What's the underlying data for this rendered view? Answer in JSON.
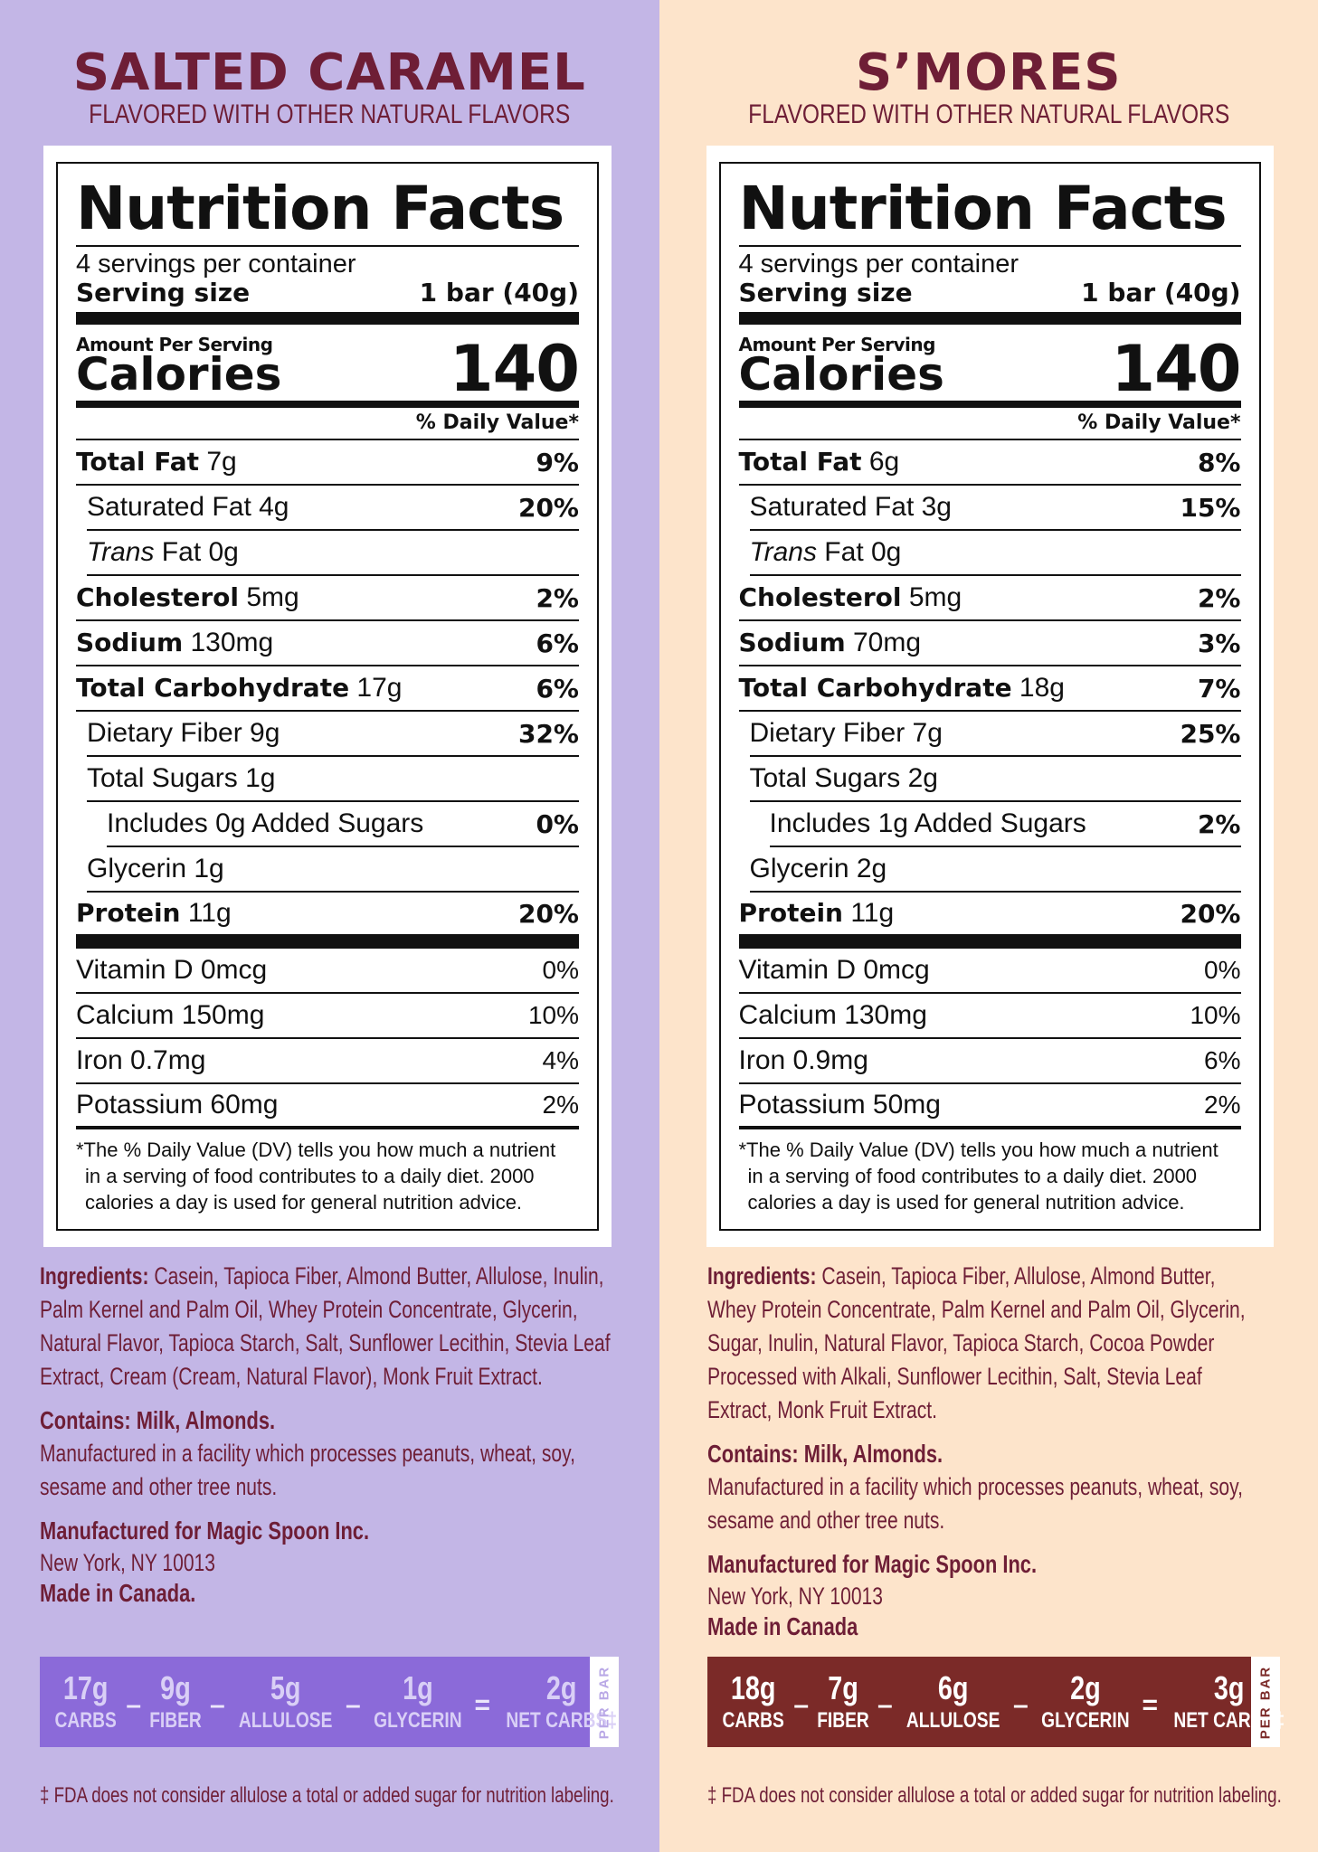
{
  "products": [
    {
      "flavor": "SALTED CARAMEL",
      "subtitle": "FLAVORED WITH OTHER NATURAL FLAVORS",
      "nutrition": {
        "title": "Nutrition Facts",
        "servings_per_container": "4 servings per container",
        "serving_size_label": "Serving size",
        "serving_size_value": "1 bar (40g)",
        "amount_per_serving": "Amount Per Serving",
        "calories_label": "Calories",
        "calories_value": "140",
        "daily_value_header": "% Daily Value*",
        "rows": {
          "total_fat": {
            "name": "Total Fat",
            "amount": " 7g",
            "dv": "9%"
          },
          "saturated_fat": {
            "name": "Saturated Fat 4g",
            "dv": "20%"
          },
          "trans_fat": {
            "name_italic": "Trans",
            "name_rest": " Fat 0g"
          },
          "cholesterol": {
            "name": "Cholesterol",
            "amount": " 5mg",
            "dv": "2%"
          },
          "sodium": {
            "name": "Sodium",
            "amount": " 130mg",
            "dv": "6%"
          },
          "total_carbohydrate": {
            "name": "Total Carbohydrate",
            "amount": " 17g",
            "dv": "6%"
          },
          "dietary_fiber": {
            "name": "Dietary Fiber 9g",
            "dv": "32%"
          },
          "total_sugars": {
            "name": "Total Sugars 1g"
          },
          "added_sugars": {
            "name": "Includes 0g Added Sugars",
            "dv": "0%"
          },
          "glycerin": {
            "name": "Glycerin 1g"
          },
          "protein": {
            "name": "Protein",
            "amount": " 11g",
            "dv": "20%"
          }
        },
        "vitamins": {
          "vitamin_d": {
            "name": "Vitamin D 0mcg",
            "dv": "0%"
          },
          "calcium": {
            "name": "Calcium 150mg",
            "dv": "10%"
          },
          "iron": {
            "name": "Iron 0.7mg",
            "dv": "4%"
          },
          "potassium": {
            "name": "Potassium 60mg",
            "dv": "2%"
          }
        },
        "footnote": {
          "line1": "*The % Daily Value (DV) tells you how much a nutrient",
          "line2": "in a serving of food contributes to a daily diet. 2000",
          "line3": "calories a day is used for general nutrition advice."
        }
      },
      "ingredients_label": "Ingredients:",
      "ingredients_text": " Casein, Tapioca Fiber, Almond Butter, Allulose, Inulin, Palm Kernel and Palm Oil, Whey Protein Concentrate, Glycerin, Natural Flavor, Tapioca Starch, Salt, Sunflower Lecithin, Stevia Leaf Extract, Cream (Cream, Natural Flavor), Monk Fruit Extract.",
      "contains": "Contains: Milk, Almonds.",
      "facility": "Manufactured in a facility which processes peanuts, wheat, soy, sesame and other tree nuts.",
      "manufactured_for": "Manufactured for Magic Spoon Inc.",
      "address": "New York, NY 10013",
      "made_in": "Made in Canada.",
      "carbs_bar": {
        "carbs_value": "17g",
        "carbs_label": "CARBS",
        "fiber_value": "9g",
        "fiber_label": "FIBER",
        "allulose_value": "5g",
        "allulose_label": "ALLULOSE",
        "glycerin_value": "1g",
        "glycerin_label": "GLYCERIN",
        "net_value": "2g",
        "net_label": "NET CARBS‡",
        "minus": "–",
        "equals": "=",
        "per_bar": "PER BAR"
      },
      "fda_note": "‡ FDA does not consider allulose a total or added sugar for nutrition labeling."
    },
    {
      "flavor": "S’MORES",
      "subtitle": "FLAVORED WITH OTHER NATURAL FLAVORS",
      "nutrition": {
        "title": "Nutrition Facts",
        "servings_per_container": "4 servings per container",
        "serving_size_label": "Serving size",
        "serving_size_value": "1 bar (40g)",
        "amount_per_serving": "Amount Per Serving",
        "calories_label": "Calories",
        "calories_value": "140",
        "daily_value_header": "% Daily Value*",
        "rows": {
          "total_fat": {
            "name": "Total Fat",
            "amount": " 6g",
            "dv": "8%"
          },
          "saturated_fat": {
            "name": "Saturated Fat 3g",
            "dv": "15%"
          },
          "trans_fat": {
            "name_italic": "Trans",
            "name_rest": " Fat 0g"
          },
          "cholesterol": {
            "name": "Cholesterol",
            "amount": " 5mg",
            "dv": "2%"
          },
          "sodium": {
            "name": "Sodium",
            "amount": " 70mg",
            "dv": "3%"
          },
          "total_carbohydrate": {
            "name": "Total Carbohydrate",
            "amount": " 18g",
            "dv": "7%"
          },
          "dietary_fiber": {
            "name": "Dietary Fiber 7g",
            "dv": "25%"
          },
          "total_sugars": {
            "name": "Total Sugars 2g"
          },
          "added_sugars": {
            "name": "Includes 1g Added Sugars",
            "dv": "2%"
          },
          "glycerin": {
            "name": "Glycerin 2g"
          },
          "protein": {
            "name": "Protein",
            "amount": " 11g",
            "dv": "20%"
          }
        },
        "vitamins": {
          "vitamin_d": {
            "name": "Vitamin D 0mcg",
            "dv": "0%"
          },
          "calcium": {
            "name": "Calcium 130mg",
            "dv": "10%"
          },
          "iron": {
            "name": "Iron 0.9mg",
            "dv": "6%"
          },
          "potassium": {
            "name": "Potassium 50mg",
            "dv": "2%"
          }
        },
        "footnote": {
          "line1": "*The % Daily Value (DV) tells you how much a nutrient",
          "line2": "in a serving of food contributes to a daily diet. 2000",
          "line3": "calories a day is used for general nutrition advice."
        }
      },
      "ingredients_label": "Ingredients:",
      "ingredients_text": " Casein, Tapioca Fiber, Allulose, Almond Butter, Whey Protein Concentrate, Palm Kernel and Palm Oil, Glycerin, Sugar, Inulin, Natural Flavor, Tapioca Starch, Cocoa Powder Processed with Alkali, Sunflower Lecithin, Salt, Stevia Leaf Extract, Monk Fruit Extract.",
      "contains": "Contains: Milk, Almonds.",
      "facility": "Manufactured in a facility which processes peanuts, wheat, soy, sesame and other tree nuts.",
      "manufactured_for": "Manufactured for Magic Spoon Inc.",
      "address": "New York, NY 10013",
      "made_in": "Made in Canada",
      "carbs_bar": {
        "carbs_value": "18g",
        "carbs_label": "CARBS",
        "fiber_value": "7g",
        "fiber_label": "FIBER",
        "allulose_value": "6g",
        "allulose_label": "ALLULOSE",
        "glycerin_value": "2g",
        "glycerin_label": "GLYCERIN",
        "net_value": "3g",
        "net_label": "NET CARBS‡",
        "minus": "–",
        "equals": "=",
        "per_bar": "PER BAR"
      },
      "fda_note": "‡ FDA does not consider allulose a total or added sugar for nutrition labeling."
    }
  ],
  "colors": {
    "left_background": "#c3b6e6",
    "right_background": "#fde4cb",
    "title_color": "#6e1e36",
    "left_bar": "#8b6ad9",
    "right_bar": "#7b2a28"
  }
}
